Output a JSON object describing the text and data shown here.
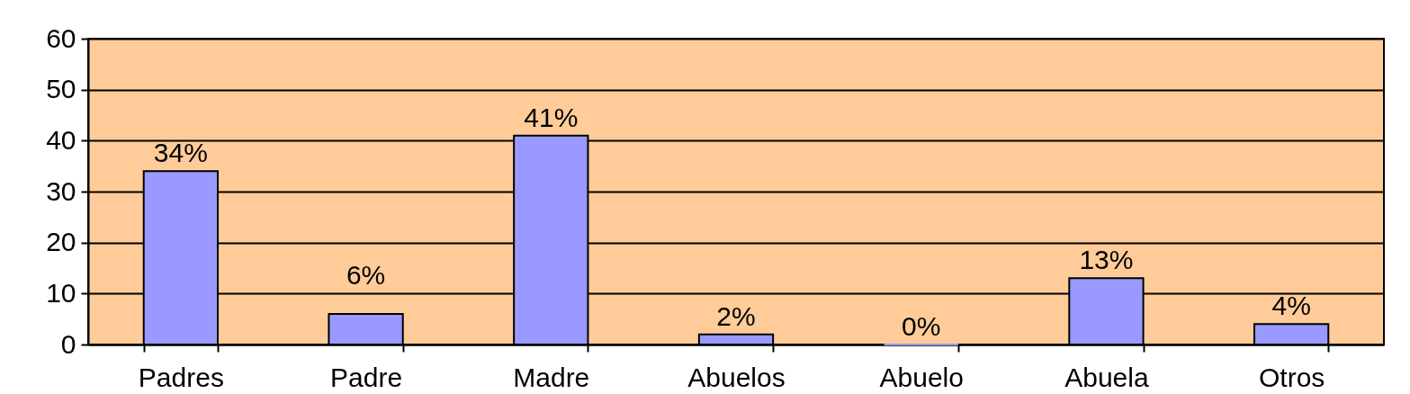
{
  "chart_data": {
    "type": "bar",
    "categories": [
      "Padres",
      "Padre",
      "Madre",
      "Abuelos",
      "Abuelo",
      "Abuela",
      "Otros"
    ],
    "values": [
      34,
      6,
      41,
      2,
      0,
      13,
      4
    ],
    "value_labels": [
      "34%",
      "6%",
      "41%",
      "2%",
      "0%",
      "13%",
      "4%"
    ],
    "color": "#9999ff",
    "ylim": [
      0,
      60
    ],
    "yticks": [
      0,
      10,
      20,
      30,
      40,
      50,
      60
    ],
    "grid": "y"
  }
}
